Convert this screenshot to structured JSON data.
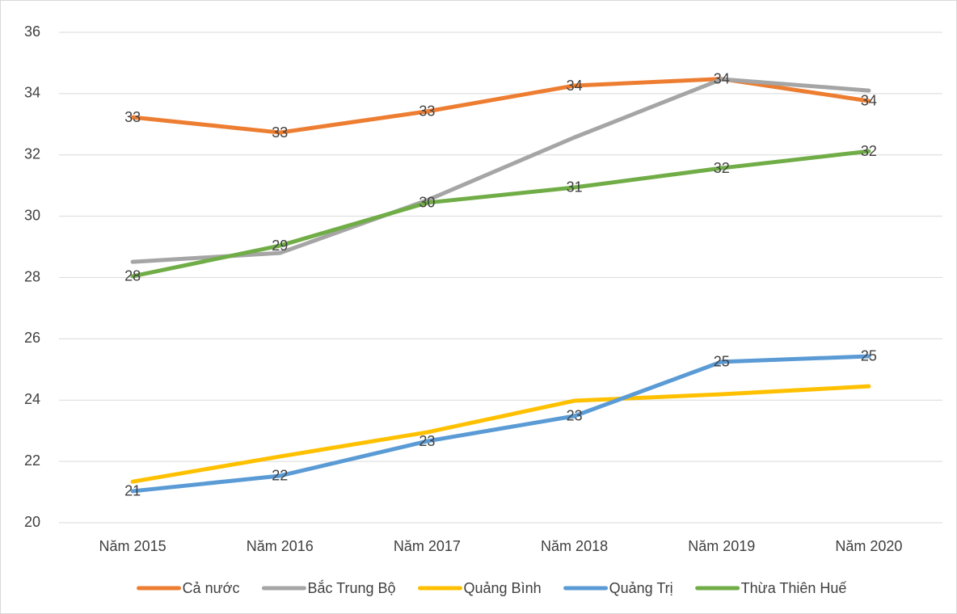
{
  "chart_data": {
    "type": "line",
    "categories": [
      "Năm 2015",
      "Năm 2016",
      "Năm 2017",
      "Năm 2018",
      "Năm 2019",
      "Năm 2020"
    ],
    "series": [
      {
        "name": "Cả nước",
        "color": "#ed7d31",
        "values": [
          33.23,
          32.73,
          33.42,
          34.26,
          34.48,
          33.76
        ],
        "value_labels": [
          "33",
          "33",
          "33",
          "34",
          "34",
          "34"
        ]
      },
      {
        "name": "Bắc Trung Bộ",
        "color": "#a5a5a5",
        "values": [
          28.51,
          28.8,
          30.52,
          32.57,
          34.47,
          34.1
        ]
      },
      {
        "name": "Quảng Bình",
        "color": "#ffc000",
        "values": [
          21.34,
          22.16,
          22.95,
          23.98,
          24.19,
          24.45
        ]
      },
      {
        "name": "Quảng Trị",
        "color": "#5b9bd5",
        "values": [
          21.03,
          21.53,
          22.66,
          23.48,
          25.25,
          25.43
        ],
        "value_labels": [
          "21",
          "22",
          "23",
          "23",
          "25",
          "25"
        ]
      },
      {
        "name": "Thừa Thiên Huế",
        "color": "#70ad47",
        "values": [
          28.04,
          29.04,
          30.44,
          30.94,
          31.57,
          32.12
        ],
        "value_labels": [
          "28",
          "29",
          "30",
          "31",
          "32",
          "32"
        ]
      }
    ],
    "ylim": [
      20,
      36
    ],
    "yticks": [
      20,
      22,
      24,
      26,
      28,
      30,
      32,
      34,
      36
    ],
    "grid": true,
    "legend": "bottom"
  }
}
